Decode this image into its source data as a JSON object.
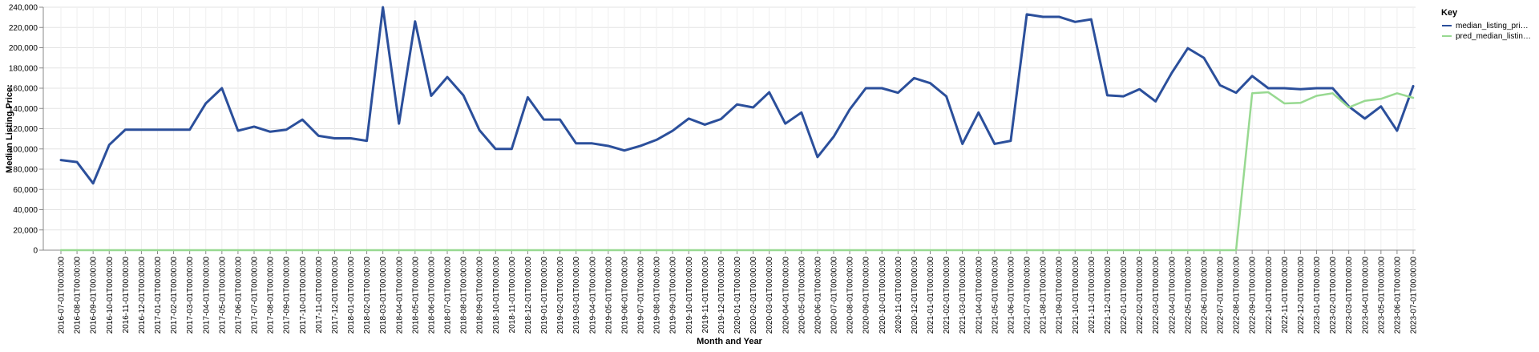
{
  "chart_data": {
    "type": "line",
    "xlabel": "Month and Year",
    "ylabel": "Median Listing Price:",
    "ylim": [
      0,
      240000
    ],
    "yticks": [
      "0",
      "20,000",
      "40,000",
      "60,000",
      "80,000",
      "100,000",
      "120,000",
      "140,000",
      "160,000",
      "180,000",
      "200,000",
      "220,000",
      "240,000"
    ],
    "ytick_values": [
      0,
      20000,
      40000,
      60000,
      80000,
      100000,
      120000,
      140000,
      160000,
      180000,
      200000,
      220000,
      240000
    ],
    "grid": true,
    "legend": {
      "title": "Key",
      "position": "right"
    },
    "x": [
      "2016-07-01T00:00:00",
      "2016-08-01T00:00:00",
      "2016-09-01T00:00:00",
      "2016-10-01T00:00:00",
      "2016-11-01T00:00:00",
      "2016-12-01T00:00:00",
      "2017-01-01T00:00:00",
      "2017-02-01T00:00:00",
      "2017-03-01T00:00:00",
      "2017-04-01T00:00:00",
      "2017-05-01T00:00:00",
      "2017-06-01T00:00:00",
      "2017-07-01T00:00:00",
      "2017-08-01T00:00:00",
      "2017-09-01T00:00:00",
      "2017-10-01T00:00:00",
      "2017-11-01T00:00:00",
      "2017-12-01T00:00:00",
      "2018-01-01T00:00:00",
      "2018-02-01T00:00:00",
      "2018-03-01T00:00:00",
      "2018-04-01T00:00:00",
      "2018-05-01T00:00:00",
      "2018-06-01T00:00:00",
      "2018-07-01T00:00:00",
      "2018-08-01T00:00:00",
      "2018-09-01T00:00:00",
      "2018-10-01T00:00:00",
      "2018-11-01T00:00:00",
      "2018-12-01T00:00:00",
      "2019-01-01T00:00:00",
      "2019-02-01T00:00:00",
      "2019-03-01T00:00:00",
      "2019-04-01T00:00:00",
      "2019-05-01T00:00:00",
      "2019-06-01T00:00:00",
      "2019-07-01T00:00:00",
      "2019-08-01T00:00:00",
      "2019-09-01T00:00:00",
      "2019-10-01T00:00:00",
      "2019-11-01T00:00:00",
      "2019-12-01T00:00:00",
      "2020-01-01T00:00:00",
      "2020-02-01T00:00:00",
      "2020-03-01T00:00:00",
      "2020-04-01T00:00:00",
      "2020-05-01T00:00:00",
      "2020-06-01T00:00:00",
      "2020-07-01T00:00:00",
      "2020-08-01T00:00:00",
      "2020-09-01T00:00:00",
      "2020-10-01T00:00:00",
      "2020-11-01T00:00:00",
      "2020-12-01T00:00:00",
      "2021-01-01T00:00:00",
      "2021-02-01T00:00:00",
      "2021-03-01T00:00:00",
      "2021-04-01T00:00:00",
      "2021-05-01T00:00:00",
      "2021-06-01T00:00:00",
      "2021-07-01T00:00:00",
      "2021-08-01T00:00:00",
      "2021-09-01T00:00:00",
      "2021-10-01T00:00:00",
      "2021-11-01T00:00:00",
      "2021-12-01T00:00:00",
      "2022-01-01T00:00:00",
      "2022-02-01T00:00:00",
      "2022-03-01T00:00:00",
      "2022-04-01T00:00:00",
      "2022-05-01T00:00:00",
      "2022-06-01T00:00:00",
      "2022-07-01T00:00:00",
      "2022-08-01T00:00:00",
      "2022-09-01T00:00:00",
      "2022-10-01T00:00:00",
      "2022-11-01T00:00:00",
      "2022-12-01T00:00:00",
      "2023-01-01T00:00:00",
      "2023-02-01T00:00:00",
      "2023-03-01T00:00:00",
      "2023-04-01T00:00:00",
      "2023-05-01T00:00:00",
      "2023-06-01T00:00:00",
      "2023-07-01T00:00:00"
    ],
    "series": [
      {
        "name": "median_listing_pri…",
        "color": "#2b4f9b",
        "values": [
          89000,
          87000,
          66000,
          104000,
          119000,
          119000,
          119000,
          119000,
          119000,
          145000,
          160000,
          118000,
          122000,
          117000,
          119000,
          129000,
          113000,
          110500,
          110500,
          108000,
          240000,
          125000,
          226000,
          152500,
          171000,
          153000,
          118500,
          100000,
          100000,
          151000,
          129000,
          129000,
          105500,
          105500,
          103000,
          98500,
          103000,
          109000,
          118000,
          130000,
          124000,
          129500,
          144000,
          141000,
          156000,
          125000,
          136000,
          92000,
          112000,
          139000,
          160000,
          160000,
          155500,
          170000,
          165000,
          152000,
          105000,
          136000,
          105000,
          108000,
          233000,
          230500,
          230500,
          225500,
          228000,
          153000,
          152000,
          159000,
          147000,
          175000,
          199500,
          190000,
          163000,
          155500,
          172000,
          160000,
          160000,
          159000,
          160000,
          160000,
          142000,
          130000,
          142000,
          118000,
          162000
        ]
      },
      {
        "name": "pred_median_listin…",
        "color": "#98d991",
        "values": [
          0,
          0,
          0,
          0,
          0,
          0,
          0,
          0,
          0,
          0,
          0,
          0,
          0,
          0,
          0,
          0,
          0,
          0,
          0,
          0,
          0,
          0,
          0,
          0,
          0,
          0,
          0,
          0,
          0,
          0,
          0,
          0,
          0,
          0,
          0,
          0,
          0,
          0,
          0,
          0,
          0,
          0,
          0,
          0,
          0,
          0,
          0,
          0,
          0,
          0,
          0,
          0,
          0,
          0,
          0,
          0,
          0,
          0,
          0,
          0,
          0,
          0,
          0,
          0,
          0,
          0,
          0,
          0,
          0,
          0,
          0,
          0,
          0,
          0,
          155000,
          156000,
          145000,
          145500,
          152500,
          155000,
          141000,
          147500,
          149500,
          155000,
          150500
        ]
      }
    ]
  }
}
